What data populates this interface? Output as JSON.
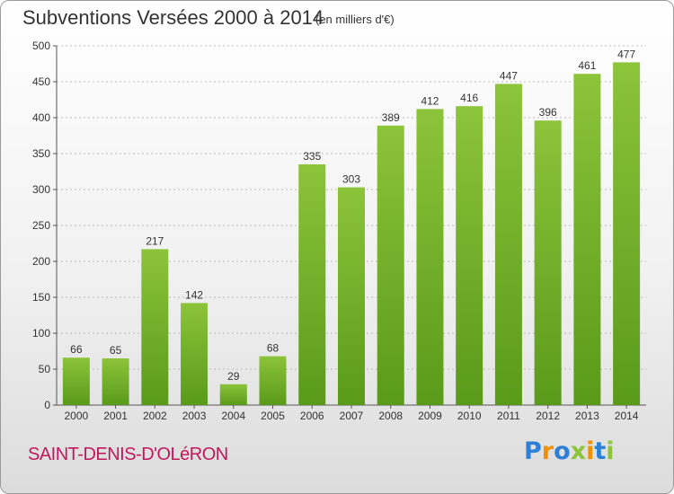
{
  "chart_data": {
    "type": "bar",
    "title": "Subventions Versées 2000 à 2014",
    "subtitle": "(en milliers d'€)",
    "categories": [
      "2000",
      "2001",
      "2002",
      "2003",
      "2004",
      "2005",
      "2006",
      "2007",
      "2008",
      "2009",
      "2010",
      "2011",
      "2012",
      "2013",
      "2014"
    ],
    "values": [
      66,
      65,
      217,
      142,
      29,
      68,
      335,
      303,
      389,
      412,
      416,
      447,
      396,
      461,
      477
    ],
    "ylim": [
      0,
      500
    ],
    "yticks": [
      0,
      50,
      100,
      150,
      200,
      250,
      300,
      350,
      400,
      450,
      500
    ],
    "grid": true,
    "bar_color": "#8cc43a",
    "bar_color_dark": "#5a9a1a",
    "gridline_color": "#bbbbbb"
  },
  "footer": {
    "commune": "SAINT-DENIS-D'OLéRON",
    "commune_color": "#c2185b",
    "logo_text": "Proxiti",
    "logo_colors": [
      "#2e7fd6",
      "#f29100",
      "#2e7fd6",
      "#8cc43a",
      "#f29100",
      "#2e7fd6",
      "#8cc43a"
    ]
  }
}
